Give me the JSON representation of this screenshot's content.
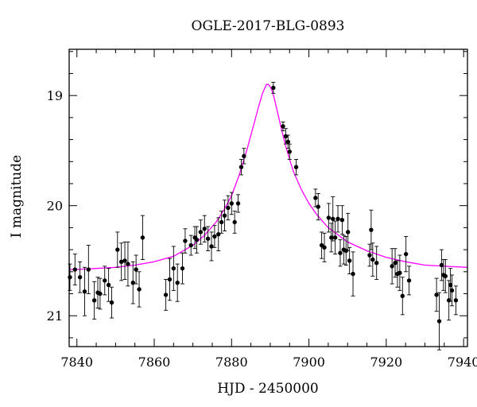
{
  "chart_data": {
    "type": "scatter",
    "title": "OGLE-2017-BLG-0893",
    "xlabel": "HJD - 2450000",
    "ylabel": "I magnitude",
    "xlim": [
      7838,
      7941
    ],
    "ylim": [
      21.28,
      18.58
    ],
    "y_inverted": true,
    "grid": false,
    "xticks_major": [
      7840,
      7860,
      7880,
      7900,
      7920,
      7940
    ],
    "xticks_minor_step": 5,
    "yticks_major": [
      19,
      20,
      21
    ],
    "yticks_minor_step": 0.2,
    "xtick_labels": [
      "7840",
      "7860",
      "7880",
      "7900",
      "7920",
      "7940"
    ],
    "ytick_labels": [
      "19",
      "20",
      "21"
    ],
    "colors": {
      "data": "#000000",
      "model": "#ff00ff",
      "axes": "#000000"
    },
    "series": [
      {
        "kind": "data",
        "x": [
          7838.2,
          7839.5,
          7840.8,
          7842.0,
          7843.0,
          7844.5,
          7845.4,
          7846.0,
          7847.2,
          7848.2,
          7849.0,
          7850.5,
          7851.5,
          7852.4,
          7853.2,
          7854.5,
          7855.3,
          7856.1,
          7857.0,
          7863.0,
          7864.0,
          7865.0,
          7866.0,
          7867.3,
          7868.0,
          7869.5,
          7870.5,
          7871.0,
          7872.0,
          7873.0,
          7873.9,
          7874.8,
          7875.6,
          7876.6,
          7877.4,
          7878.2,
          7879.1,
          7880.0,
          7880.8,
          7881.7,
          7882.5,
          7883.2,
          7890.8,
          7893.3,
          7894.0,
          7894.6,
          7895.0,
          7896.7,
          7901.7,
          7902.4,
          7903.3,
          7904.0,
          7905.1,
          7905.8,
          7906.2,
          7906.8,
          7907.5,
          7908.1,
          7908.6,
          7909.0,
          7909.6,
          7910.1,
          7910.5,
          7911.4,
          7915.7,
          7916.1,
          7916.5,
          7917.5,
          7921.5,
          7922.3,
          7922.9,
          7923.5,
          7924.2,
          7925.1,
          7925.9,
          7933.0,
          7933.7,
          7934.3,
          7934.8,
          7935.3,
          7936.2,
          7936.6,
          7937.0,
          7938.0
        ],
        "y": [
          20.65,
          20.58,
          20.65,
          20.78,
          20.58,
          20.86,
          20.79,
          20.8,
          20.68,
          20.72,
          20.88,
          20.4,
          20.51,
          20.5,
          20.53,
          20.7,
          20.58,
          20.76,
          20.29,
          20.81,
          20.67,
          20.57,
          20.7,
          20.57,
          20.32,
          20.36,
          20.29,
          20.31,
          20.24,
          20.21,
          20.3,
          20.37,
          20.28,
          20.26,
          20.15,
          20.09,
          20.02,
          19.98,
          20.15,
          19.98,
          19.65,
          19.55,
          18.93,
          19.28,
          19.37,
          19.42,
          19.51,
          19.65,
          19.93,
          20.01,
          20.36,
          20.38,
          20.11,
          20.29,
          20.12,
          20.29,
          20.12,
          20.43,
          20.13,
          20.4,
          20.41,
          20.24,
          20.5,
          20.62,
          20.45,
          20.22,
          20.49,
          20.52,
          20.55,
          20.52,
          20.62,
          20.61,
          20.82,
          20.44,
          20.68,
          20.81,
          21.05,
          20.54,
          20.63,
          20.64,
          20.86,
          20.72,
          20.77,
          20.86
        ],
        "yerr": [
          0.12,
          0.14,
          0.14,
          0.22,
          0.22,
          0.17,
          0.14,
          0.14,
          0.13,
          0.15,
          0.14,
          0.16,
          0.17,
          0.17,
          0.2,
          0.19,
          0.13,
          0.16,
          0.2,
          0.14,
          0.19,
          0.2,
          0.17,
          0.14,
          0.11,
          0.09,
          0.1,
          0.12,
          0.11,
          0.12,
          0.11,
          0.13,
          0.1,
          0.15,
          0.1,
          0.14,
          0.11,
          0.1,
          0.1,
          0.08,
          0.07,
          0.07,
          0.05,
          0.04,
          0.07,
          0.06,
          0.07,
          0.07,
          0.08,
          0.12,
          0.12,
          0.13,
          0.13,
          0.13,
          0.2,
          0.15,
          0.12,
          0.12,
          0.13,
          0.13,
          0.13,
          0.17,
          0.12,
          0.2,
          0.1,
          0.18,
          0.15,
          0.15,
          0.16,
          0.13,
          0.12,
          0.16,
          0.17,
          0.16,
          0.13,
          0.15,
          0.26,
          0.14,
          0.14,
          0.15,
          0.18,
          0.15,
          0.14,
          0.13
        ]
      },
      {
        "kind": "model",
        "x": [
          7838,
          7840,
          7845,
          7850,
          7855,
          7860,
          7865,
          7870,
          7873,
          7876,
          7878,
          7880,
          7882,
          7884,
          7885,
          7886,
          7887,
          7888,
          7889,
          7889.5,
          7890,
          7890.5,
          7891,
          7892,
          7893,
          7894,
          7895,
          7896,
          7898,
          7900,
          7902,
          7905,
          7910,
          7915,
          7920,
          7925,
          7930,
          7935,
          7941
        ],
        "y": [
          20.58,
          20.58,
          20.57,
          20.56,
          20.54,
          20.51,
          20.46,
          20.36,
          20.27,
          20.15,
          20.04,
          19.91,
          19.72,
          19.49,
          19.36,
          19.23,
          19.1,
          18.98,
          18.9,
          18.9,
          18.92,
          18.96,
          19.02,
          19.17,
          19.32,
          19.46,
          19.58,
          19.69,
          19.85,
          19.98,
          20.08,
          20.2,
          20.33,
          20.41,
          20.47,
          20.51,
          20.54,
          20.55,
          20.56
        ]
      }
    ]
  }
}
